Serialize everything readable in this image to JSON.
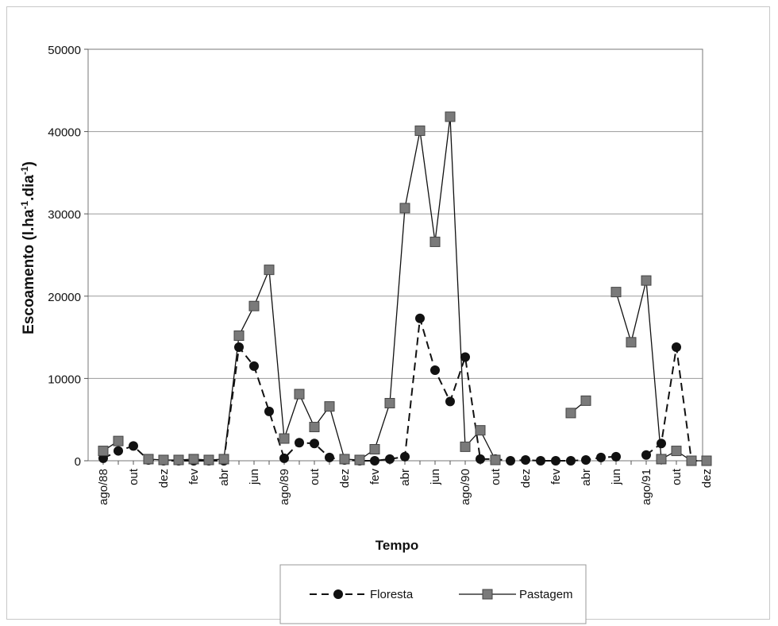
{
  "chart_data": {
    "type": "line",
    "xlabel": "Tempo",
    "ylabel": "Escoamento (l.ha⁻¹.dia⁻¹)",
    "ylim": [
      0,
      50000
    ],
    "yticks": [
      0,
      10000,
      20000,
      30000,
      40000,
      50000
    ],
    "grid": "horizontal",
    "legend_position": "bottom",
    "x_tick_labels": [
      "ago/88",
      "out",
      "dez",
      "fev",
      "abr",
      "jun",
      "ago/89",
      "out",
      "dez",
      "fev",
      "abr",
      "jun",
      "ago/90",
      "out",
      "dez",
      "fev",
      "abr",
      "jun",
      "ago/91",
      "out",
      "dez"
    ],
    "x_tick_positions": [
      0,
      2,
      4,
      6,
      8,
      10,
      12,
      14,
      16,
      18,
      20,
      22,
      24,
      26,
      28,
      30,
      32,
      34,
      36,
      38,
      40
    ],
    "num_points": 41,
    "series": [
      {
        "name": "Floresta",
        "style": "dashed",
        "marker": "circle",
        "color": "#111111",
        "values": [
          300,
          1200,
          1800,
          100,
          0,
          0,
          0,
          0,
          0,
          13800,
          11500,
          6000,
          300,
          2200,
          2100,
          400,
          100,
          0,
          0,
          200,
          500,
          17300,
          11000,
          7200,
          12600,
          200,
          200,
          0,
          100,
          0,
          0,
          0,
          100,
          400,
          500,
          null,
          700,
          2100,
          13800,
          0,
          0
        ]
      },
      {
        "name": "Pastagem",
        "style": "solid",
        "marker": "square",
        "color": "#7a7a7a",
        "values": [
          1200,
          2400,
          null,
          200,
          100,
          100,
          200,
          100,
          200,
          15200,
          18800,
          23200,
          2700,
          8100,
          4100,
          6600,
          200,
          100,
          1400,
          7000,
          30700,
          40100,
          26600,
          41800,
          1700,
          3700,
          100,
          null,
          null,
          null,
          null,
          5800,
          7300,
          null,
          20500,
          14400,
          21900,
          200,
          1200,
          0,
          0
        ]
      }
    ]
  }
}
